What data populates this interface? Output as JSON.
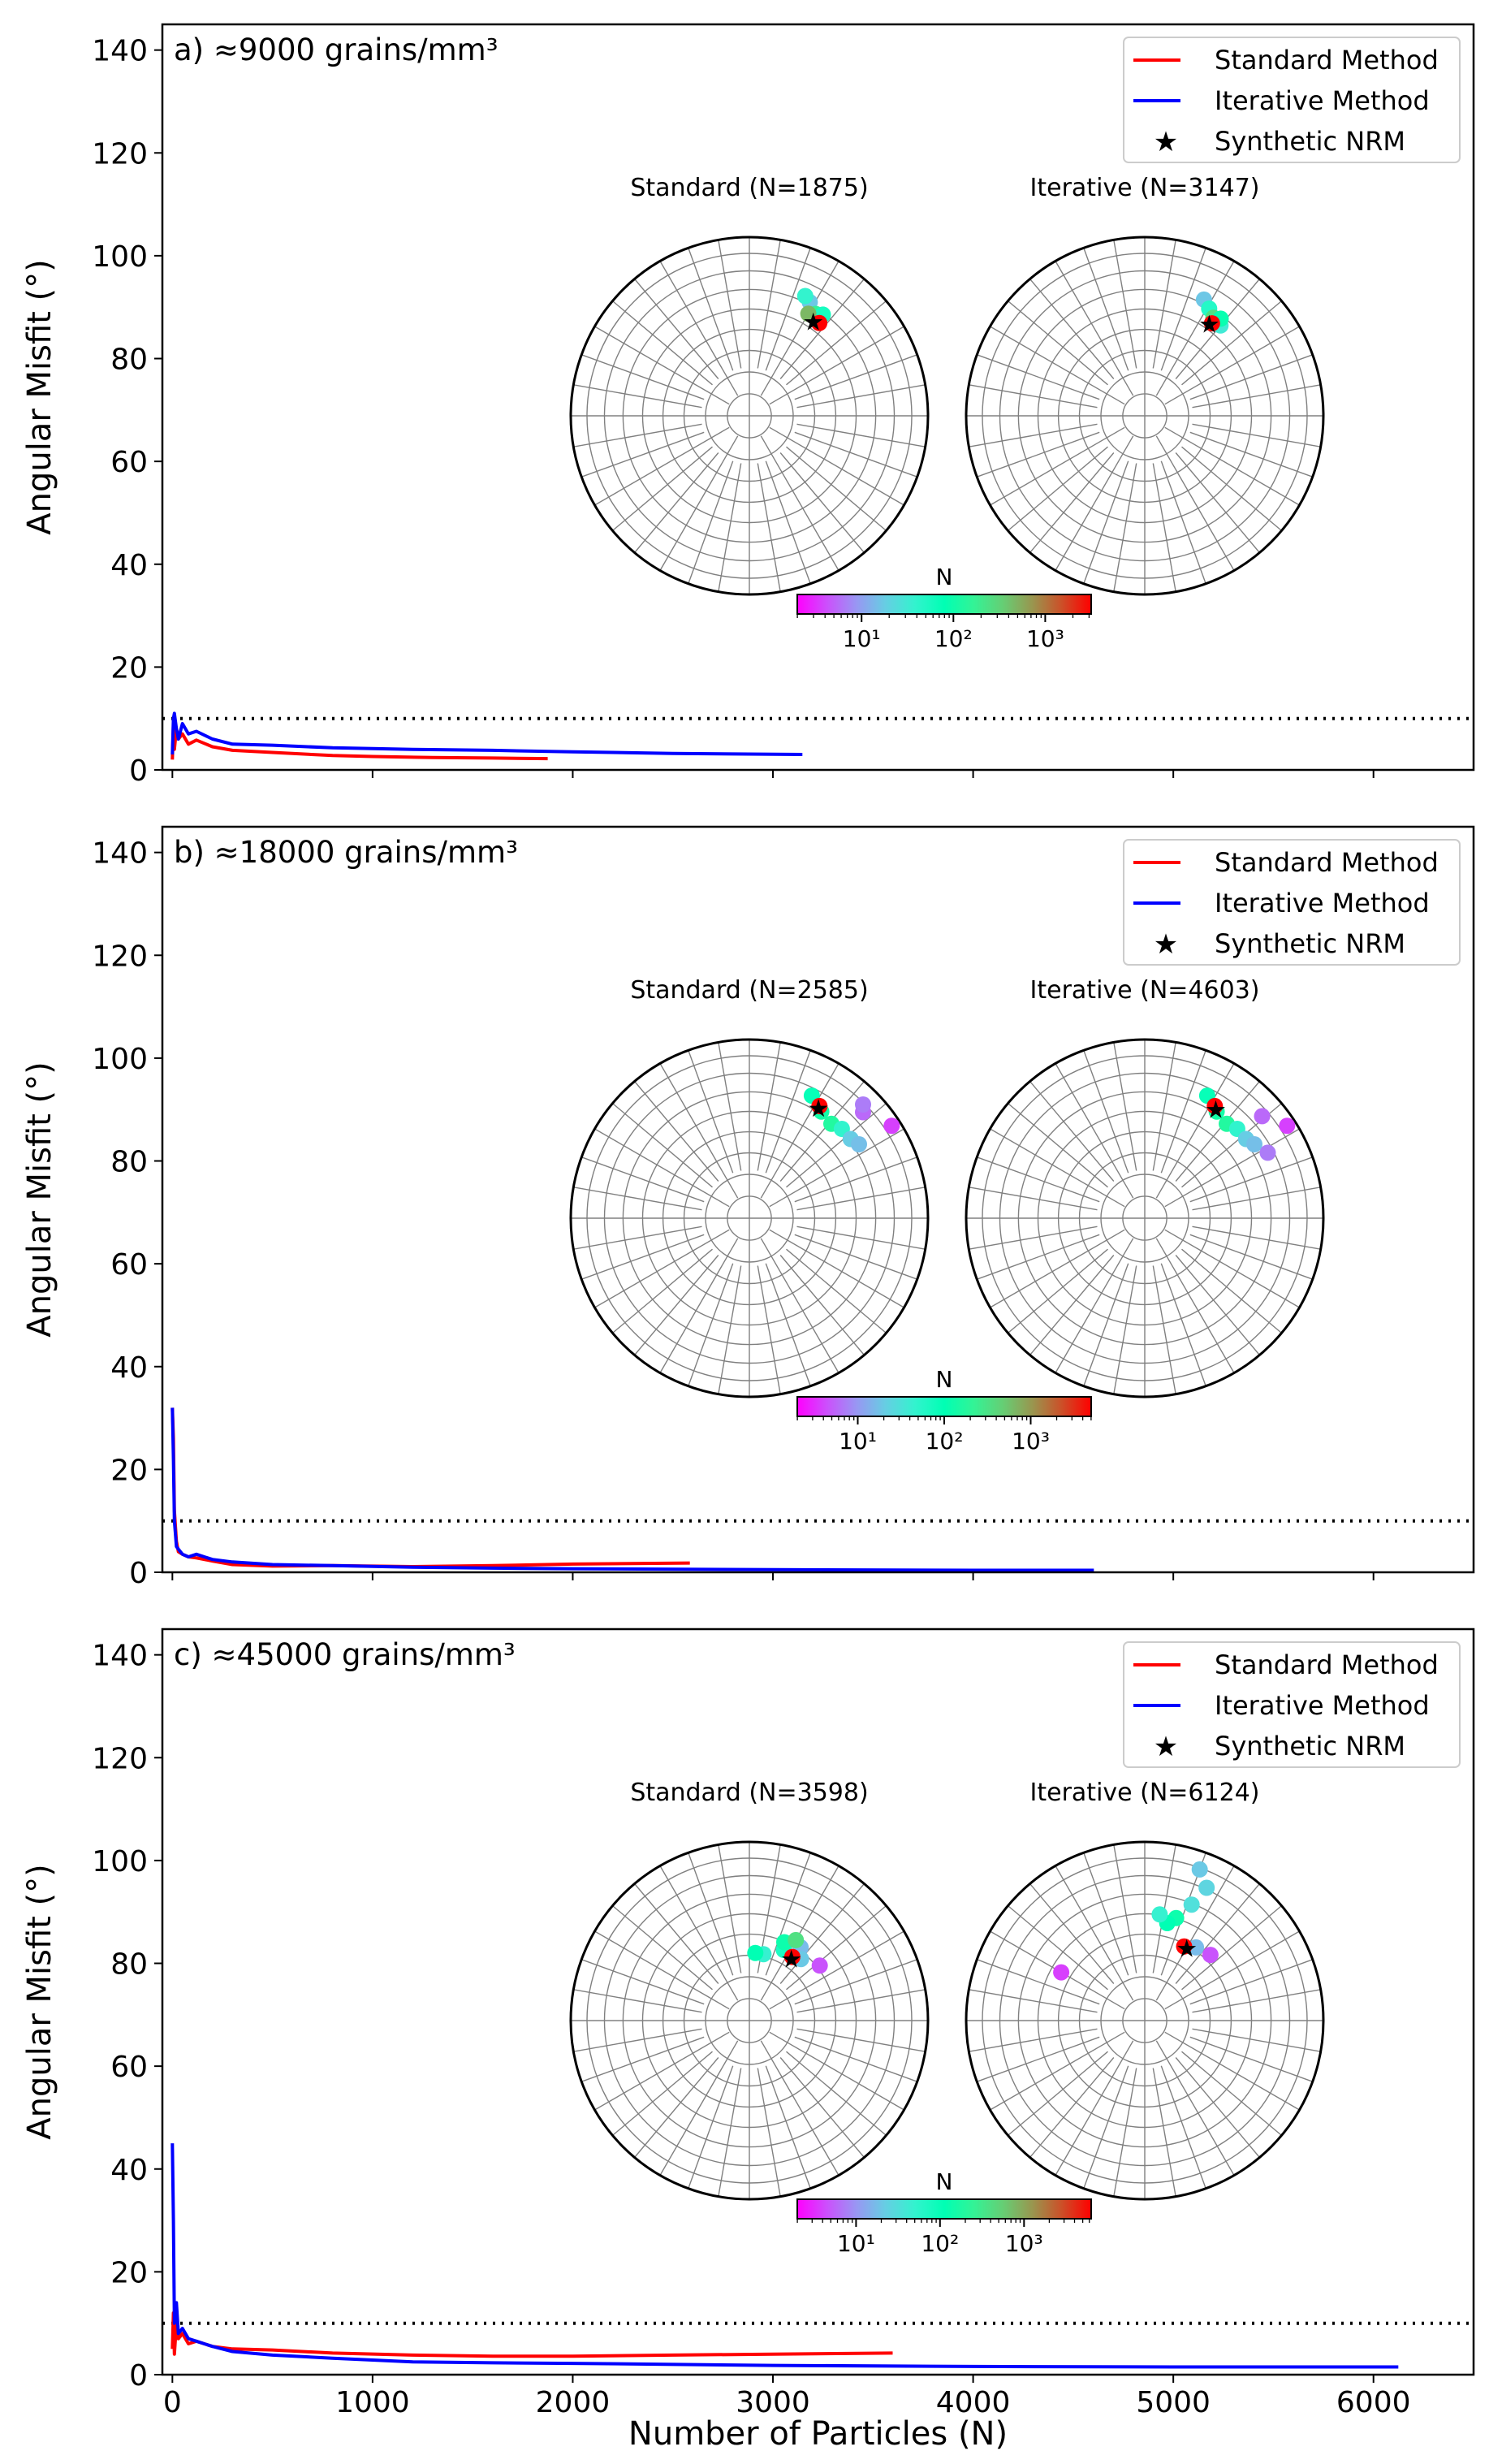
{
  "chart_data": {
    "type": "line",
    "ylabel": "Angular Misfit (°)",
    "xlabel": "Number of Particles (N)",
    "xlim": [
      -50,
      6500
    ],
    "ylim": [
      0,
      145
    ],
    "x_ticks": [
      0,
      1000,
      2000,
      3000,
      4000,
      5000,
      6000
    ],
    "y_ticks": [
      0,
      20,
      40,
      60,
      80,
      100,
      120,
      140
    ],
    "threshold": 10,
    "legend_entries": [
      "Standard Method",
      "Iterative Method",
      "Synthetic NRM"
    ],
    "legend_position": "top-right",
    "colors": {
      "standard": "#ff0000",
      "iterative": "#0000ff",
      "nrm": "#000000",
      "grid": "#808080"
    },
    "colorbar_label": "N",
    "panels": [
      {
        "title": "a) ≈9000 grains/mm³",
        "inset_titles": [
          "Standard (N=1875)",
          "Iterative (N=3147)"
        ],
        "colorbar_ticks": [
          "10¹",
          "10²",
          "10³"
        ],
        "colorbar_max_exp": 3.5,
        "series": [
          {
            "name": "Standard Method",
            "x": [
              0,
              5,
              10,
              20,
              30,
              50,
              80,
              120,
              200,
              300,
              500,
              800,
              1000,
              1300,
              1600,
              1875
            ],
            "y": [
              2,
              9,
              4,
              8,
              6,
              7,
              5,
              5.8,
              4.5,
              3.8,
              3.4,
              2.8,
              2.6,
              2.4,
              2.3,
              2.2
            ]
          },
          {
            "name": "Iterative Method",
            "x": [
              0,
              5,
              10,
              20,
              30,
              50,
              80,
              120,
              200,
              300,
              500,
              800,
              1200,
              1600,
              2000,
              2500,
              3147
            ],
            "y": [
              3,
              10,
              11,
              8,
              6,
              9,
              7,
              7.5,
              6,
              5,
              4.8,
              4.3,
              4,
              3.8,
              3.5,
              3.2,
              3.0
            ]
          }
        ],
        "stereonets": [
          {
            "points": [
              {
                "ang": 28,
                "r": 0.72,
                "v": 1
              },
              {
                "ang": 25,
                "r": 0.74,
                "v": 1.4
              },
              {
                "ang": 33,
                "r": 0.68,
                "v": 2.1
              },
              {
                "ang": 36,
                "r": 0.7,
                "v": 1.6
              },
              {
                "ang": 30,
                "r": 0.66,
                "v": 2.6
              },
              {
                "ang": 37,
                "r": 0.65,
                "v": 3.5
              }
            ],
            "star": {
              "ang": 34,
              "r": 0.64
            }
          },
          {
            "points": [
              {
                "ang": 27,
                "r": 0.73,
                "v": 1
              },
              {
                "ang": 31,
                "r": 0.7,
                "v": 1.5
              },
              {
                "ang": 40,
                "r": 0.66,
                "v": 1.3
              },
              {
                "ang": 35,
                "r": 0.67,
                "v": 2.3
              },
              {
                "ang": 38,
                "r": 0.69,
                "v": 1.8
              },
              {
                "ang": 36,
                "r": 0.64,
                "v": 3.5
              }
            ],
            "star": {
              "ang": 35,
              "r": 0.63
            }
          }
        ]
      },
      {
        "title": "b) ≈18000 grains/mm³",
        "inset_titles": [
          "Standard (N=2585)",
          "Iterative (N=4603)"
        ],
        "colorbar_ticks": [
          "10¹",
          "10²",
          "10³"
        ],
        "colorbar_max_exp": 3.7,
        "series": [
          {
            "name": "Standard Method",
            "x": [
              0,
              5,
              10,
              20,
              30,
              50,
              80,
              120,
              200,
              300,
              500,
              800,
              1200,
              1600,
              2000,
              2585
            ],
            "y": [
              32,
              26,
              12,
              6,
              4,
              3.5,
              3,
              2.8,
              2.2,
              1.5,
              1.2,
              1.3,
              1.1,
              1.3,
              1.6,
              1.8
            ]
          },
          {
            "name": "Iterative Method",
            "x": [
              0,
              5,
              10,
              20,
              30,
              50,
              80,
              120,
              200,
              300,
              500,
              800,
              1200,
              1600,
              2000,
              3000,
              4000,
              4603
            ],
            "y": [
              32,
              22,
              10,
              5,
              4.5,
              3.5,
              3,
              3.5,
              2.5,
              2,
              1.5,
              1.3,
              1,
              0.8,
              0.7,
              0.5,
              0.4,
              0.4
            ]
          }
        ],
        "stereonets": [
          {
            "points": [
              {
                "ang": 27,
                "r": 0.77,
                "v": 1.8
              },
              {
                "ang": 34,
                "r": 0.72,
                "v": 2
              },
              {
                "ang": 41,
                "r": 0.7,
                "v": 2.1
              },
              {
                "ang": 46,
                "r": 0.72,
                "v": 1.5
              },
              {
                "ang": 52,
                "r": 0.72,
                "v": 1.1
              },
              {
                "ang": 56,
                "r": 0.74,
                "v": 1
              },
              {
                "ang": 47,
                "r": 0.87,
                "v": 0.5
              },
              {
                "ang": 57,
                "r": 0.95,
                "v": 0.3
              },
              {
                "ang": 45,
                "r": 0.9,
                "v": 0.6
              },
              {
                "ang": 32,
                "r": 0.74,
                "v": 3.7
              }
            ],
            "star": {
              "ang": 32,
              "r": 0.73
            }
          },
          {
            "points": [
              {
                "ang": 27,
                "r": 0.77,
                "v": 1.8
              },
              {
                "ang": 34,
                "r": 0.72,
                "v": 2
              },
              {
                "ang": 41,
                "r": 0.7,
                "v": 2.1
              },
              {
                "ang": 46,
                "r": 0.72,
                "v": 1.5
              },
              {
                "ang": 52,
                "r": 0.72,
                "v": 1.1
              },
              {
                "ang": 56,
                "r": 0.74,
                "v": 1
              },
              {
                "ang": 49,
                "r": 0.87,
                "v": 0.5
              },
              {
                "ang": 57,
                "r": 0.95,
                "v": 0.3
              },
              {
                "ang": 62,
                "r": 0.78,
                "v": 0.6
              },
              {
                "ang": 32,
                "r": 0.74,
                "v": 3.7
              }
            ],
            "star": {
              "ang": 33,
              "r": 0.73
            }
          }
        ]
      },
      {
        "title": "c) ≈45000 grains/mm³",
        "inset_titles": [
          "Standard (N=3598)",
          "Iterative (N=6124)"
        ],
        "colorbar_ticks": [
          "10¹",
          "10²",
          "10³"
        ],
        "colorbar_max_exp": 3.8,
        "series": [
          {
            "name": "Standard Method",
            "x": [
              0,
              5,
              10,
              20,
              30,
              50,
              80,
              120,
              200,
              300,
              500,
              800,
              1200,
              1600,
              2000,
              2500,
              3000,
              3598
            ],
            "y": [
              5,
              12,
              4,
              10,
              7,
              8,
              6,
              6.5,
              5.5,
              5,
              4.8,
              4.2,
              3.8,
              3.6,
              3.6,
              3.8,
              4.0,
              4.2
            ]
          },
          {
            "name": "Iterative Method",
            "x": [
              0,
              5,
              10,
              20,
              30,
              50,
              80,
              120,
              200,
              300,
              500,
              800,
              1200,
              1600,
              2000,
              3000,
              4000,
              5000,
              6124
            ],
            "y": [
              45,
              30,
              10,
              14,
              8,
              9,
              7,
              6.5,
              5.5,
              4.5,
              3.8,
              3.2,
              2.5,
              2.3,
              2.2,
              1.8,
              1.6,
              1.5,
              1.5
            ]
          }
        ],
        "stereonets": [
          {
            "points": [
              {
                "ang": 26,
                "r": 0.44,
                "v": 1.7
              },
              {
                "ang": 24,
                "r": 0.48,
                "v": 2.0
              },
              {
                "ang": 35,
                "r": 0.5,
                "v": 1.0
              },
              {
                "ang": 40,
                "r": 0.45,
                "v": 1.1
              },
              {
                "ang": 52,
                "r": 0.5,
                "v": 0.4
              },
              {
                "ang": 12,
                "r": 0.38,
                "v": 1.5
              },
              {
                "ang": 5,
                "r": 0.38,
                "v": 1.9
              },
              {
                "ang": 30,
                "r": 0.52,
                "v": 2.5
              },
              {
                "ang": 34,
                "r": 0.43,
                "v": 3.8
              }
            ],
            "star": {
              "ang": 34,
              "r": 0.42
            }
          },
          {
            "points": [
              {
                "ang": 20,
                "r": 0.9,
                "v": 1.1
              },
              {
                "ang": 25,
                "r": 0.82,
                "v": 1.2
              },
              {
                "ang": 22,
                "r": 0.7,
                "v": 1.3
              },
              {
                "ang": 17,
                "r": 0.6,
                "v": 2.0
              },
              {
                "ang": 13,
                "r": 0.56,
                "v": 1.9
              },
              {
                "ang": 8,
                "r": 0.6,
                "v": 1.5
              },
              {
                "ang": 35,
                "r": 0.5,
                "v": 1.0
              },
              {
                "ang": 45,
                "r": 0.52,
                "v": 0.4
              },
              {
                "ang": 300,
                "r": 0.54,
                "v": 0.3
              },
              {
                "ang": 28,
                "r": 0.47,
                "v": 3.8
              }
            ],
            "star": {
              "ang": 30,
              "r": 0.47
            }
          }
        ]
      }
    ]
  }
}
